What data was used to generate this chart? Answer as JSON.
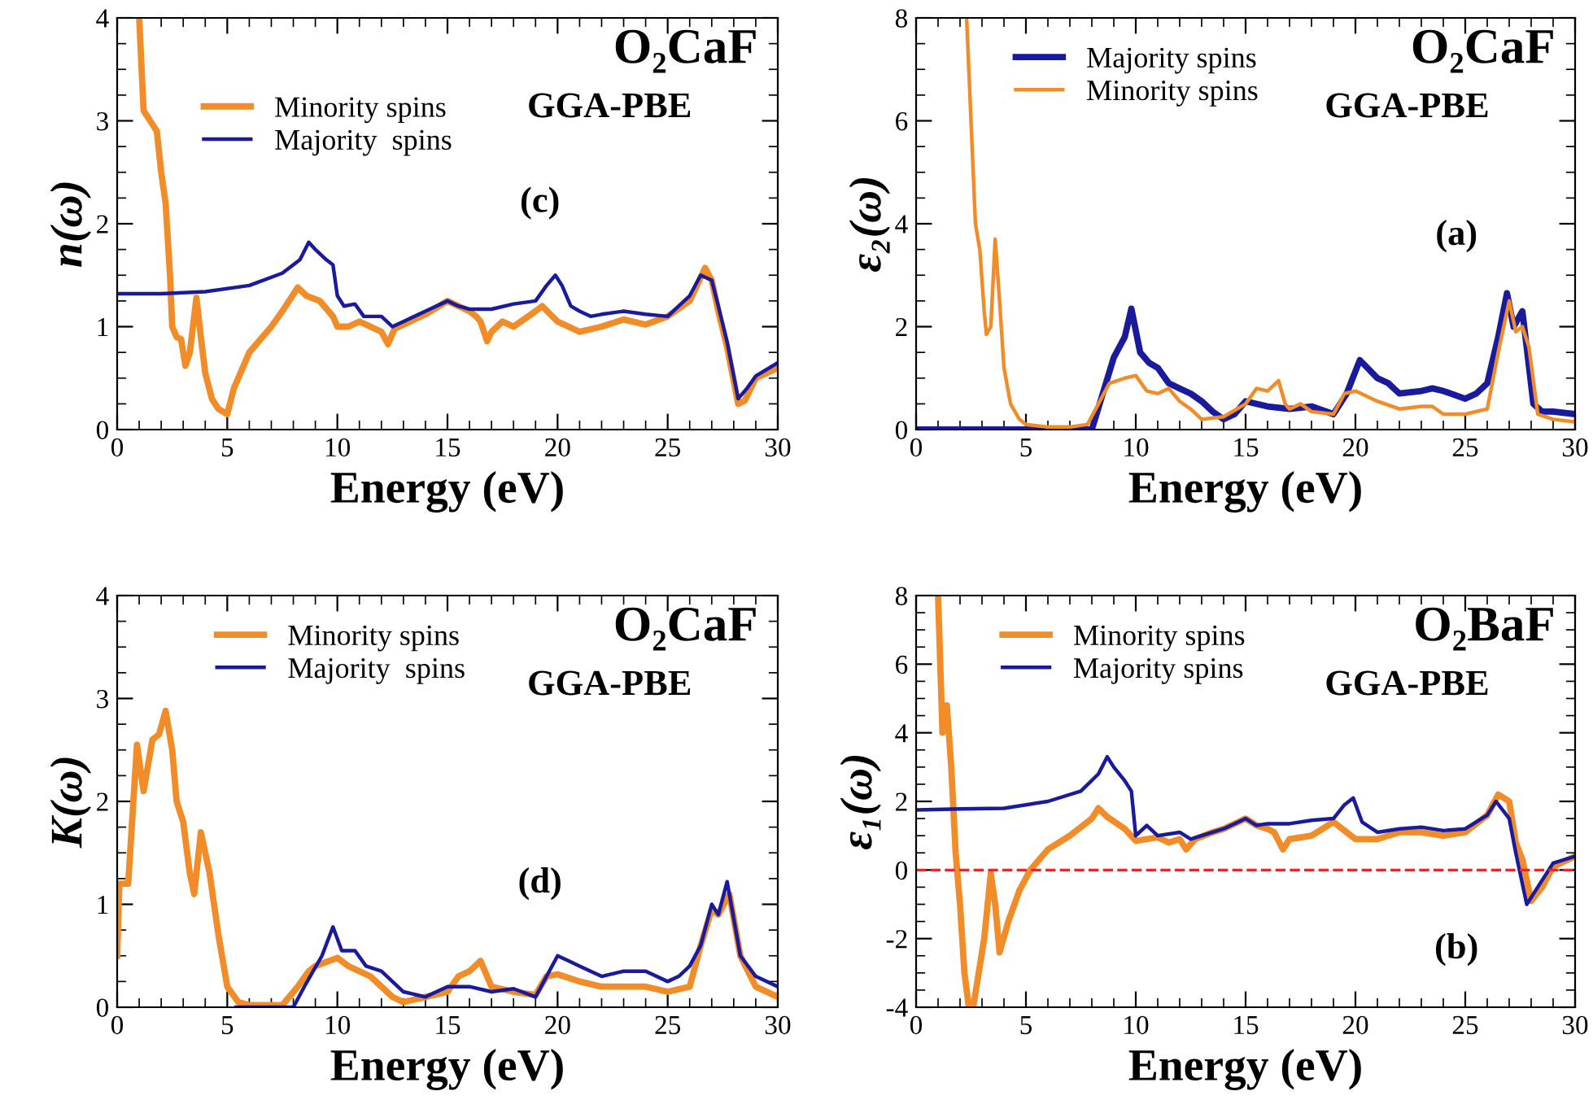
{
  "chart_data": [
    {
      "type": "line",
      "xlabel": "Energy (eV)",
      "ylabel": "n(ω)",
      "xlim": [
        0,
        30
      ],
      "ylim": [
        0,
        4
      ],
      "xticks": [
        0,
        5,
        10,
        15,
        20,
        25,
        30
      ],
      "yticks": [
        0,
        1,
        2,
        3,
        4
      ],
      "legend": "top left",
      "grid": false,
      "line_style": "solid",
      "annotations": [
        "O₂CaF",
        "GGA-PBE",
        "(c)"
      ],
      "series": [
        {
          "name": "Minority spins",
          "color": "#f28c28",
          "x": [
            1.0,
            1.2,
            1.5,
            1.8,
            2.0,
            2.2,
            2.4,
            2.5,
            2.7,
            2.9,
            3.1,
            3.3,
            3.6,
            3.8,
            4.0,
            4.3,
            4.6,
            5.0,
            5.3,
            6,
            7,
            7.5,
            8.2,
            8.6,
            9.2,
            9.8,
            10,
            10.5,
            11,
            11.5,
            12,
            12.3,
            12.6,
            13,
            14,
            15,
            15.5,
            16,
            16.3,
            16.5,
            16.8,
            17,
            17.5,
            18,
            19,
            19.3,
            20,
            21,
            22,
            23,
            24,
            25,
            26,
            26.7,
            27,
            27.3,
            27.7,
            28.2,
            28.5,
            29,
            30
          ],
          "values": [
            4.0,
            3.1,
            3.0,
            2.9,
            2.5,
            2.2,
            1.5,
            1.0,
            0.9,
            0.88,
            0.62,
            0.75,
            1.28,
            0.9,
            0.55,
            0.3,
            0.2,
            0.15,
            0.4,
            0.75,
            1.0,
            1.15,
            1.38,
            1.3,
            1.25,
            1.1,
            1.0,
            1.0,
            1.05,
            1.0,
            0.95,
            0.83,
            0.98,
            1.02,
            1.12,
            1.25,
            1.2,
            1.15,
            1.1,
            1.05,
            0.86,
            0.95,
            1.05,
            1.0,
            1.15,
            1.2,
            1.05,
            0.95,
            1.0,
            1.07,
            1.02,
            1.1,
            1.25,
            1.57,
            1.45,
            1.15,
            0.8,
            0.25,
            0.28,
            0.5,
            0.6
          ]
        },
        {
          "name": "Majority  spins",
          "color": "#1a1a9c",
          "x": [
            0,
            2,
            4,
            6,
            7.5,
            8.3,
            8.7,
            9,
            9.5,
            9.8,
            10,
            10.3,
            10.8,
            11.2,
            12,
            12.5,
            13,
            14,
            15,
            15.5,
            16,
            17,
            18,
            19,
            19.5,
            19.9,
            20.2,
            20.6,
            21,
            21.5,
            22,
            23,
            24,
            25,
            25.5,
            26,
            26.5,
            27,
            27.3,
            27.7,
            28.2,
            28.6,
            29,
            30
          ],
          "values": [
            1.32,
            1.32,
            1.34,
            1.4,
            1.52,
            1.65,
            1.82,
            1.75,
            1.65,
            1.6,
            1.3,
            1.2,
            1.22,
            1.1,
            1.1,
            1.0,
            1.05,
            1.15,
            1.25,
            1.2,
            1.17,
            1.17,
            1.22,
            1.25,
            1.4,
            1.5,
            1.4,
            1.2,
            1.15,
            1.1,
            1.12,
            1.15,
            1.12,
            1.1,
            1.2,
            1.3,
            1.5,
            1.45,
            1.2,
            0.85,
            0.3,
            0.4,
            0.52,
            0.65
          ]
        }
      ]
    },
    {
      "type": "line",
      "xlabel": "Energy (eV)",
      "ylabel": "ε₂(ω)",
      "xlim": [
        0,
        30
      ],
      "ylim": [
        0,
        8
      ],
      "xticks": [
        0,
        5,
        10,
        15,
        20,
        25,
        30
      ],
      "yticks": [
        0,
        2,
        4,
        6,
        8
      ],
      "legend": "top left",
      "grid": false,
      "line_style": "solid",
      "annotations": [
        "O₂CaF",
        "GGA-PBE",
        "(a)"
      ],
      "series": [
        {
          "name": "Majority spins",
          "color": "#1a1a9c",
          "x": [
            0,
            8,
            8.5,
            9,
            9.5,
            9.8,
            10.2,
            10.6,
            11,
            11.5,
            12,
            12.5,
            13,
            13.5,
            14,
            14.5,
            15,
            16,
            17,
            18,
            19,
            19.6,
            20.2,
            21,
            21.5,
            22,
            23,
            23.5,
            24,
            25,
            25.5,
            26,
            26.5,
            26.9,
            27.2,
            27.6,
            28.1,
            28.5,
            29,
            30
          ],
          "values": [
            0,
            0,
            0.7,
            1.4,
            1.8,
            2.35,
            1.5,
            1.3,
            1.2,
            0.9,
            0.8,
            0.7,
            0.55,
            0.35,
            0.2,
            0.3,
            0.55,
            0.45,
            0.4,
            0.45,
            0.3,
            0.7,
            1.35,
            1.0,
            0.9,
            0.7,
            0.75,
            0.8,
            0.75,
            0.6,
            0.7,
            0.9,
            1.8,
            2.65,
            2.0,
            2.3,
            0.5,
            0.35,
            0.35,
            0.3
          ]
        },
        {
          "name": "Minority spins",
          "color": "#f28c28",
          "x": [
            2.3,
            2.5,
            2.7,
            2.9,
            3.1,
            3.2,
            3.4,
            3.6,
            3.8,
            4.0,
            4.3,
            4.7,
            5,
            6,
            7,
            7.8,
            8.3,
            8.8,
            9.5,
            10,
            10.5,
            11,
            11.5,
            12,
            12.5,
            13,
            14,
            15,
            15.5,
            16,
            16.5,
            16.8,
            17,
            17.5,
            18,
            19,
            19.5,
            20,
            21,
            22,
            23,
            23.5,
            24,
            25,
            26,
            26.5,
            27,
            27.3,
            27.6,
            27.9,
            28.3,
            29,
            30
          ],
          "values": [
            8.0,
            6.0,
            4.0,
            3.5,
            2.3,
            1.85,
            2.0,
            3.7,
            2.5,
            1.2,
            0.5,
            0.2,
            0.1,
            0.05,
            0.05,
            0.1,
            0.5,
            0.9,
            1.0,
            1.05,
            0.75,
            0.7,
            0.8,
            0.55,
            0.4,
            0.2,
            0.25,
            0.5,
            0.8,
            0.75,
            0.95,
            0.5,
            0.4,
            0.5,
            0.35,
            0.3,
            0.7,
            0.75,
            0.55,
            0.4,
            0.45,
            0.45,
            0.3,
            0.3,
            0.4,
            1.5,
            2.5,
            1.9,
            2.0,
            1.6,
            0.3,
            0.2,
            0.15
          ]
        }
      ]
    },
    {
      "type": "line",
      "xlabel": "Energy (eV)",
      "ylabel": "K(ω)",
      "xlim": [
        0,
        30
      ],
      "ylim": [
        0,
        4
      ],
      "xticks": [
        0,
        5,
        10,
        15,
        20,
        25,
        30
      ],
      "yticks": [
        0,
        1,
        2,
        3,
        4
      ],
      "legend": "top left",
      "grid": false,
      "line_style": "solid",
      "annotations": [
        "O₂CaF",
        "GGA-PBE",
        "(d)"
      ],
      "series": [
        {
          "name": "Minority spins",
          "color": "#f28c28",
          "x": [
            0,
            0.1,
            0.5,
            0.9,
            1.2,
            1.6,
            1.9,
            2.2,
            2.5,
            2.7,
            3.0,
            3.3,
            3.5,
            3.8,
            4.2,
            4.6,
            5.0,
            5.5,
            6,
            7.5,
            8.2,
            8.7,
            9,
            10,
            10.5,
            11,
            11.5,
            12,
            12.5,
            13,
            14,
            15,
            15.5,
            16,
            16.5,
            16.8,
            17,
            18,
            19,
            19.5,
            20,
            21,
            22,
            23,
            24,
            25,
            26,
            26.5,
            27,
            27.3,
            27.8,
            28.3,
            29,
            30
          ],
          "values": [
            0.5,
            1.2,
            1.2,
            2.55,
            2.1,
            2.6,
            2.65,
            2.88,
            2.5,
            2.0,
            1.8,
            1.3,
            1.1,
            1.7,
            1.3,
            0.7,
            0.2,
            0.05,
            0.02,
            0.02,
            0.2,
            0.35,
            0.4,
            0.48,
            0.4,
            0.35,
            0.3,
            0.2,
            0.1,
            0.05,
            0.1,
            0.15,
            0.3,
            0.35,
            0.45,
            0.3,
            0.2,
            0.15,
            0.12,
            0.3,
            0.32,
            0.25,
            0.2,
            0.2,
            0.2,
            0.15,
            0.2,
            0.6,
            0.95,
            0.9,
            1.1,
            0.5,
            0.2,
            0.1
          ]
        },
        {
          "name": "Majority  spins",
          "color": "#1a1a9c",
          "x": [
            5.4,
            8,
            8.5,
            9.3,
            9.8,
            10.2,
            10.8,
            11.3,
            12,
            12.5,
            13,
            14,
            15,
            16,
            17,
            18,
            19,
            19.5,
            20,
            20.5,
            21,
            22,
            23,
            24,
            25,
            25.5,
            26,
            26.5,
            27,
            27.3,
            27.7,
            28.3,
            29,
            30
          ],
          "values": [
            0,
            0,
            0.2,
            0.5,
            0.78,
            0.55,
            0.55,
            0.4,
            0.35,
            0.25,
            0.15,
            0.1,
            0.2,
            0.2,
            0.15,
            0.18,
            0.1,
            0.3,
            0.5,
            0.45,
            0.4,
            0.3,
            0.35,
            0.35,
            0.25,
            0.3,
            0.4,
            0.6,
            1.0,
            0.9,
            1.22,
            0.5,
            0.3,
            0.2
          ]
        }
      ]
    },
    {
      "type": "line",
      "xlabel": "Energy (eV)",
      "ylabel": "ε₁(ω)",
      "xlim": [
        0,
        30
      ],
      "ylim": [
        -4,
        8
      ],
      "xticks": [
        0,
        5,
        10,
        15,
        20,
        25,
        30
      ],
      "yticks": [
        -4,
        -2,
        0,
        2,
        4,
        6,
        8
      ],
      "legend": "top left",
      "grid": false,
      "line_style": "solid",
      "annotations": [
        "O₂BaF",
        "GGA-PBE",
        "(b)"
      ],
      "ref_lines": [
        {
          "axis": "y",
          "value": 0,
          "color": "#e8262d",
          "line_style": "dashed"
        }
      ],
      "series": [
        {
          "name": "Minority spins",
          "color": "#f28c28",
          "x": [
            1.0,
            1.2,
            1.4,
            1.6,
            1.8,
            2.0,
            2.2,
            2.4,
            2.5,
            2.6,
            2.9,
            3.1,
            3.4,
            3.6,
            3.8,
            4.2,
            4.7,
            5.2,
            6,
            7,
            8,
            8.3,
            8.7,
            9.5,
            10,
            11,
            11.5,
            12,
            12.3,
            12.7,
            13.5,
            14,
            15,
            15.5,
            16,
            16.3,
            16.7,
            17,
            18,
            19,
            20,
            21,
            22,
            23,
            24,
            25,
            26,
            26.5,
            27,
            27.3,
            27.6,
            28,
            28.5,
            29,
            30
          ],
          "values": [
            8.0,
            4.0,
            4.8,
            3.0,
            0.5,
            -1.0,
            -3.0,
            -4.0,
            null,
            -4.0,
            -2.8,
            -2.0,
            -0.1,
            -1.0,
            -2.4,
            -1.5,
            -0.6,
            0.0,
            0.6,
            1.0,
            1.5,
            1.8,
            1.55,
            1.2,
            0.85,
            0.95,
            0.8,
            0.9,
            0.6,
            0.9,
            1.1,
            1.2,
            1.5,
            1.3,
            1.2,
            1.1,
            0.6,
            0.9,
            1.0,
            1.4,
            0.9,
            0.9,
            1.1,
            1.1,
            1.0,
            1.1,
            1.6,
            2.2,
            2.0,
            0.8,
            0.3,
            -0.9,
            -0.5,
            0.1,
            0.4
          ]
        },
        {
          "name": "Majority spins",
          "color": "#1a1a9c",
          "x": [
            0,
            2,
            4,
            6,
            7.5,
            8.3,
            8.7,
            9,
            9.5,
            9.8,
            10,
            10.5,
            11,
            12,
            12.5,
            13,
            14,
            15,
            15.5,
            16,
            17,
            18,
            19,
            19.5,
            19.9,
            20.3,
            21,
            22,
            23,
            24,
            25,
            26,
            26.4,
            27,
            27.3,
            27.8,
            28.3,
            29,
            30
          ],
          "values": [
            1.75,
            1.78,
            1.8,
            2.0,
            2.3,
            2.8,
            3.3,
            3.0,
            2.6,
            2.3,
            1.0,
            1.3,
            1.0,
            1.1,
            0.9,
            1.0,
            1.2,
            1.5,
            1.3,
            1.35,
            1.35,
            1.45,
            1.5,
            1.9,
            2.1,
            1.4,
            1.1,
            1.2,
            1.25,
            1.15,
            1.2,
            1.6,
            2.0,
            1.5,
            0.5,
            -1.0,
            -0.5,
            0.2,
            0.4
          ]
        }
      ]
    }
  ]
}
